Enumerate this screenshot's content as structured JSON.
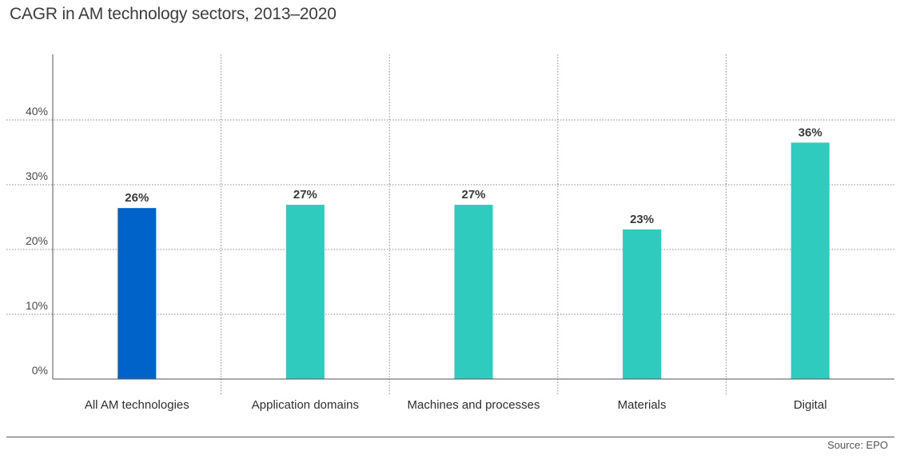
{
  "chart_data": {
    "type": "bar",
    "title": "CAGR in AM technology sectors, 2013–2020",
    "categories": [
      "All AM technologies",
      "Application domains",
      "Machines and processes",
      "Materials",
      "Digital"
    ],
    "values": [
      26.4,
      26.9,
      26.9,
      23.1,
      36.5
    ],
    "data_labels": [
      "26%",
      "27%",
      "27%",
      "23%",
      "36%"
    ],
    "bar_colors": [
      "#0063c9",
      "#30cbbf",
      "#30cbbf",
      "#30cbbf",
      "#30cbbf"
    ],
    "ylim": [
      0,
      50
    ],
    "yticks": [
      0,
      10,
      20,
      30,
      40
    ],
    "ytick_labels": [
      "0%",
      "10%",
      "20%",
      "30%",
      "40%"
    ],
    "xlabel": "",
    "ylabel": "",
    "grid": true
  },
  "source": "Source: EPO"
}
